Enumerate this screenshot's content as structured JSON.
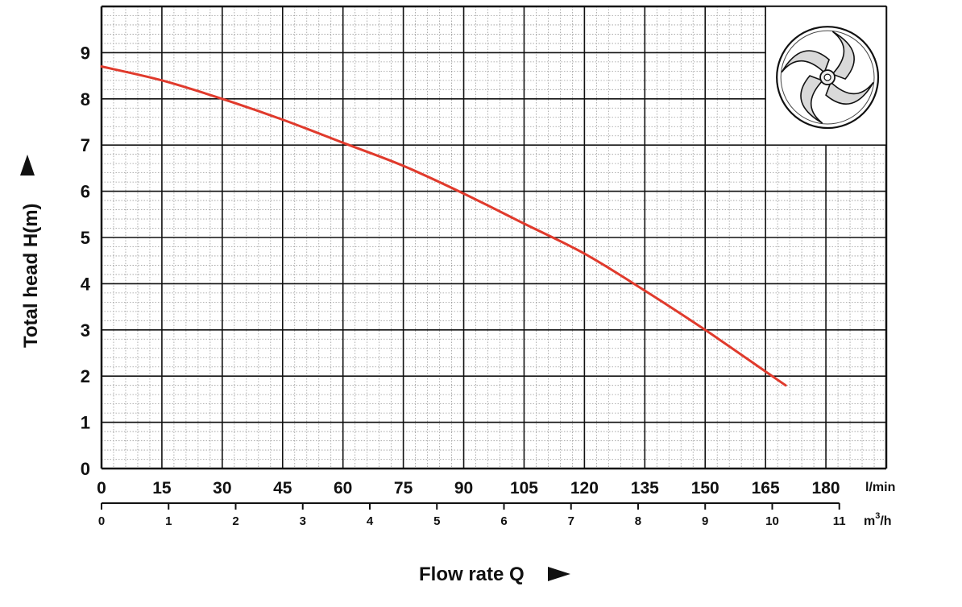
{
  "chart_data": {
    "type": "line",
    "xlabel": "Flow rate Q",
    "ylabel": "Total head  H(m)",
    "x_unit_primary": "l/min",
    "x_unit_secondary": "m³/h",
    "x_unit_secondary_base": "m",
    "x_unit_secondary_sup": "3",
    "x_unit_secondary_tail": "/h",
    "xlim": [
      0,
      195
    ],
    "ylim": [
      0,
      10
    ],
    "x_ticks": [
      "0",
      "15",
      "30",
      "45",
      "60",
      "75",
      "90",
      "105",
      "120",
      "135",
      "150",
      "165",
      "180"
    ],
    "x2_ticks": [
      "0",
      "1",
      "2",
      "3",
      "4",
      "5",
      "6",
      "7",
      "8",
      "9",
      "10",
      "11"
    ],
    "y_ticks": [
      "0",
      "1",
      "2",
      "3",
      "4",
      "5",
      "6",
      "7",
      "8",
      "9"
    ],
    "grid": true,
    "series": [
      {
        "color": "#e03a2c",
        "x": [
          0,
          15,
          30,
          45,
          60,
          75,
          90,
          105,
          120,
          135,
          150,
          165,
          170
        ],
        "y": [
          8.7,
          8.4,
          8.0,
          7.55,
          7.05,
          6.55,
          5.95,
          5.3,
          4.65,
          3.85,
          3.0,
          2.1,
          1.8
        ]
      }
    ],
    "inset": "impeller"
  },
  "colors": {
    "curve": "#e03a2c",
    "grid_major": "#111111",
    "grid_minor": "#999999",
    "inset_fill": "#d9d9d9"
  }
}
